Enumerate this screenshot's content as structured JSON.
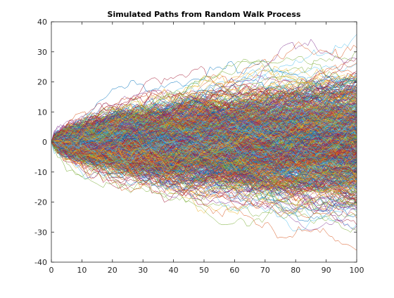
{
  "chart_data": {
    "type": "line",
    "title": "Simulated Paths from Random Walk Process",
    "xlabel": "",
    "ylabel": "",
    "xlim": [
      0,
      100
    ],
    "ylim": [
      -40,
      40
    ],
    "x_ticks": [
      0,
      10,
      20,
      30,
      40,
      50,
      60,
      70,
      80,
      90,
      100
    ],
    "y_ticks": [
      -40,
      -30,
      -20,
      -10,
      0,
      10,
      20,
      30,
      40
    ],
    "x_tick_labels": [
      "0",
      "10",
      "20",
      "30",
      "40",
      "50",
      "60",
      "70",
      "80",
      "90",
      "100"
    ],
    "y_tick_labels": [
      "-40",
      "-30",
      "-20",
      "-10",
      "0",
      "10",
      "20",
      "30",
      "40"
    ],
    "grid": false,
    "legend": "none",
    "box": true,
    "series_count": 1000,
    "steps": 100,
    "start_value": 0,
    "step_distribution": "standard normal",
    "series_colors": [
      "#0072BD",
      "#D95319",
      "#EDB120",
      "#7E2F8E",
      "#77AC30",
      "#4DBEEE",
      "#A2142F"
    ],
    "axes_color": "#262626"
  }
}
